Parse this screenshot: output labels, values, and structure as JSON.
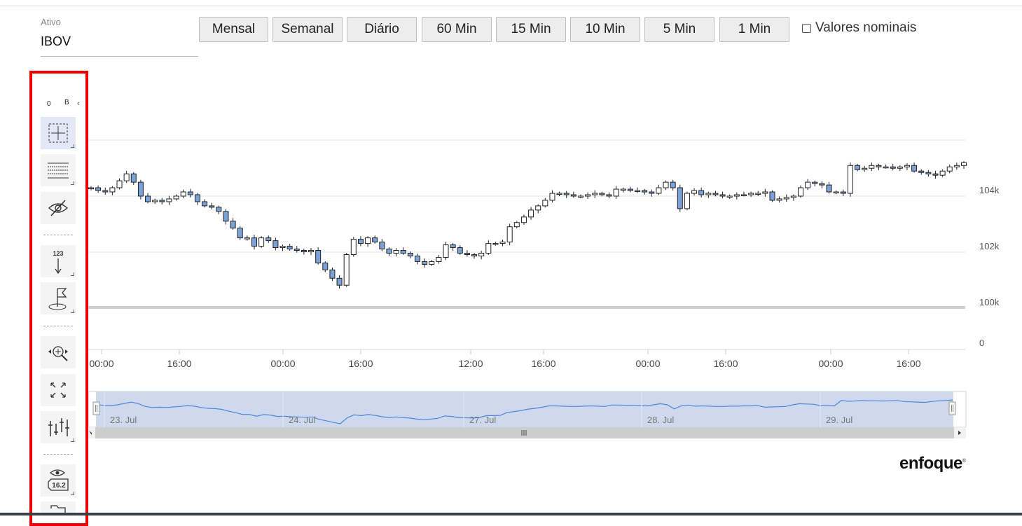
{
  "asset": {
    "label": "Ativo",
    "value": "IBOV"
  },
  "periods": [
    "Mensal",
    "Semanal",
    "Diário",
    "60 Min",
    "15 Min",
    "10 Min",
    "5 Min",
    "1 Min"
  ],
  "nominal": {
    "label": "Valores nominais",
    "checked": false
  },
  "toolbar": {
    "mini_left": "0",
    "mini_right": "B",
    "tools": [
      {
        "name": "crosshair-icon",
        "active": true
      },
      {
        "name": "horizontal-lines-icon",
        "active": false
      },
      {
        "name": "hide-eye-icon",
        "active": false
      },
      {
        "name": "measure-123-icon",
        "label": "123",
        "active": false
      },
      {
        "name": "flag-icon",
        "active": false
      },
      {
        "name": "zoom-pan-icon",
        "active": false
      },
      {
        "name": "fullscreen-icon",
        "active": false
      },
      {
        "name": "indicators-icon",
        "active": false
      },
      {
        "name": "show-values-icon",
        "label": "16.2",
        "active": false
      }
    ]
  },
  "chart_data": {
    "type": "candlestick",
    "y_axis": {
      "ticks": [
        "0",
        "100k",
        "102k",
        "104k"
      ],
      "position": "right"
    },
    "x_axis": {
      "ticks": [
        "00:00",
        "16:00",
        "00:00",
        "16:00",
        "12:00",
        "16:00",
        "00:00",
        "16:00",
        "00:00",
        "16:00"
      ]
    },
    "navigator": {
      "labels": [
        "23. Jul",
        "24. Jul",
        "27. Jul",
        "28. Jul",
        "29. Jul"
      ]
    },
    "reference_line": 100000,
    "up_color": "#ffffff",
    "down_color": "#7aa2d8",
    "series": [
      104300,
      104200,
      104150,
      104300,
      104550,
      104800,
      104500,
      104000,
      103800,
      103850,
      103800,
      103900,
      104000,
      104150,
      104050,
      103800,
      103650,
      103600,
      103450,
      103100,
      102850,
      102500,
      102500,
      102200,
      102500,
      102400,
      102150,
      102200,
      102100,
      102050,
      102000,
      102050,
      101600,
      101350,
      101050,
      100800,
      101900,
      102450,
      102300,
      102500,
      102350,
      102100,
      101950,
      102050,
      101950,
      101850,
      101650,
      101550,
      101650,
      101800,
      102250,
      102150,
      101950,
      101900,
      101850,
      101950,
      102300,
      102300,
      102350,
      102900,
      103050,
      103250,
      103500,
      103650,
      103850,
      104100,
      104100,
      104050,
      104000,
      104000,
      104050,
      104100,
      104050,
      104000,
      104250,
      104250,
      104200,
      104200,
      104150,
      104100,
      104300,
      104500,
      104300,
      103550,
      104100,
      104200,
      104050,
      104100,
      104050,
      104000,
      104000,
      104050,
      104050,
      104100,
      104100,
      104150,
      103850,
      103900,
      103950,
      104000,
      104300,
      104500,
      104450,
      104400,
      104150,
      104150,
      104100,
      105100,
      104950,
      105000,
      105100,
      105050,
      105050,
      105000,
      105050,
      105100,
      104900,
      104850,
      104800,
      104750,
      104900,
      105050,
      105100,
      105200
    ]
  },
  "brand": {
    "name": "enfoque",
    "mark": "®"
  }
}
